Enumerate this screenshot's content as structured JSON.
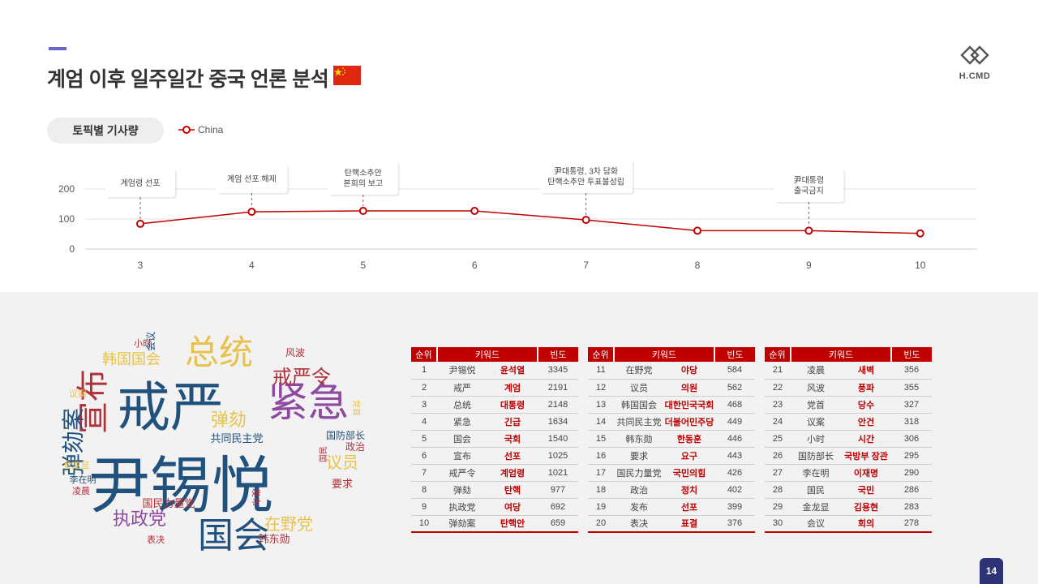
{
  "header": {
    "title": "계엄 이후 일주일간 중국 언론 분석"
  },
  "logo": {
    "text": "H.CMD"
  },
  "topic": {
    "label": "토픽별 기사량"
  },
  "colors": {
    "accent": "#6a68c9",
    "chart": "#c00000",
    "table_header": "#c00000",
    "page_badge": "#2e3376"
  },
  "chart_data": {
    "type": "line",
    "x": [
      3,
      4,
      5,
      6,
      7,
      8,
      9,
      10
    ],
    "series": [
      {
        "name": "China",
        "values": [
          84,
          124,
          127,
          127,
          97,
          61,
          61,
          52
        ]
      }
    ],
    "ylim": [
      0,
      200
    ],
    "yticks": [
      0,
      100,
      200
    ],
    "grid": true,
    "legend": "top-left",
    "annotations": [
      {
        "x": 3,
        "lines": [
          "계엄령 선포"
        ]
      },
      {
        "x": 4,
        "lines": [
          "계엄 선포 해제"
        ]
      },
      {
        "x": 5,
        "lines": [
          "탄핵소추안",
          "본회의 보고"
        ]
      },
      {
        "x": 7,
        "lines": [
          "尹대통령, 3차 담화",
          "탄핵소추안 투표불성립"
        ]
      },
      {
        "x": 9,
        "lines": [
          "尹대통령",
          "출국금지"
        ]
      }
    ]
  },
  "wordcloud": {
    "words": [
      {
        "text": "尹锡悦",
        "color": "#21527e"
      },
      {
        "text": "戒严",
        "color": "#21527e"
      },
      {
        "text": "紧急",
        "color": "#8e4aa0"
      },
      {
        "text": "总统",
        "color": "#e8c24a"
      },
      {
        "text": "宣布",
        "color": "#b03039"
      },
      {
        "text": "国会",
        "color": "#21527e"
      },
      {
        "text": "弹劾案",
        "color": "#21527e"
      },
      {
        "text": "戒严令",
        "color": "#b03039"
      },
      {
        "text": "弹劾",
        "color": "#e8c24a"
      },
      {
        "text": "执政党",
        "color": "#8e4aa0"
      },
      {
        "text": "在野党",
        "color": "#e8c24a"
      },
      {
        "text": "议员",
        "color": "#e8c24a"
      },
      {
        "text": "韩国国会",
        "color": "#e8c24a"
      },
      {
        "text": "共同民主党",
        "color": "#21527e"
      },
      {
        "text": "国民力量党",
        "color": "#b03039"
      },
      {
        "text": "韩东勋",
        "color": "#b03039"
      },
      {
        "text": "政治",
        "color": "#b03039"
      },
      {
        "text": "要求",
        "color": "#b03039"
      },
      {
        "text": "国防部长",
        "color": "#21527e"
      },
      {
        "text": "李在明",
        "color": "#21527e"
      },
      {
        "text": "凌晨",
        "color": "#b03039"
      },
      {
        "text": "风波",
        "color": "#b03039"
      },
      {
        "text": "小时",
        "color": "#b03039"
      },
      {
        "text": "会议",
        "color": "#21527e"
      },
      {
        "text": "金龙显",
        "color": "#e8c24a"
      },
      {
        "text": "表决",
        "color": "#b03039"
      },
      {
        "text": "议案",
        "color": "#e8c24a"
      },
      {
        "text": "党首",
        "color": "#e8c24a"
      },
      {
        "text": "发布",
        "color": "#b03039"
      },
      {
        "text": "国民",
        "color": "#b03039"
      }
    ]
  },
  "tables": [
    {
      "headers": [
        "순위",
        "키워드",
        "빈도"
      ],
      "rows": [
        {
          "rank": "1",
          "cn": "尹锡悦",
          "kw": "윤석열",
          "freq": "3345"
        },
        {
          "rank": "2",
          "cn": "戒严",
          "kw": "계엄",
          "freq": "2191"
        },
        {
          "rank": "3",
          "cn": "总统",
          "kw": "대통령",
          "freq": "2148"
        },
        {
          "rank": "4",
          "cn": "紧急",
          "kw": "긴급",
          "freq": "1634"
        },
        {
          "rank": "5",
          "cn": "国会",
          "kw": "국회",
          "freq": "1540"
        },
        {
          "rank": "6",
          "cn": "宣布",
          "kw": "선포",
          "freq": "1025"
        },
        {
          "rank": "7",
          "cn": "戒严令",
          "kw": "계엄령",
          "freq": "1021"
        },
        {
          "rank": "8",
          "cn": "弹劾",
          "kw": "탄핵",
          "freq": "977"
        },
        {
          "rank": "9",
          "cn": "执政党",
          "kw": "여당",
          "freq": "692"
        },
        {
          "rank": "10",
          "cn": "弹劾案",
          "kw": "탄핵안",
          "freq": "659"
        }
      ]
    },
    {
      "headers": [
        "순위",
        "키워드",
        "빈도"
      ],
      "rows": [
        {
          "rank": "11",
          "cn": "在野党",
          "kw": "야당",
          "freq": "584"
        },
        {
          "rank": "12",
          "cn": "议员",
          "kw": "의원",
          "freq": "562"
        },
        {
          "rank": "13",
          "cn": "韩国国会",
          "kw": "대한민국국회",
          "freq": "468"
        },
        {
          "rank": "14",
          "cn": "共同民主党",
          "kw": "더불어민주당",
          "freq": "449"
        },
        {
          "rank": "15",
          "cn": "韩东勋",
          "kw": "한동훈",
          "freq": "446"
        },
        {
          "rank": "16",
          "cn": "要求",
          "kw": "요구",
          "freq": "443"
        },
        {
          "rank": "17",
          "cn": "国民力量党",
          "kw": "국민의힘",
          "freq": "426"
        },
        {
          "rank": "18",
          "cn": "政治",
          "kw": "정치",
          "freq": "402"
        },
        {
          "rank": "19",
          "cn": "发布",
          "kw": "선포",
          "freq": "399"
        },
        {
          "rank": "20",
          "cn": "表决",
          "kw": "표결",
          "freq": "376"
        }
      ]
    },
    {
      "headers": [
        "순위",
        "키워드",
        "빈도"
      ],
      "rows": [
        {
          "rank": "21",
          "cn": "凌晨",
          "kw": "새벽",
          "freq": "356"
        },
        {
          "rank": "22",
          "cn": "风波",
          "kw": "풍파",
          "freq": "355"
        },
        {
          "rank": "23",
          "cn": "党首",
          "kw": "당수",
          "freq": "327"
        },
        {
          "rank": "24",
          "cn": "议案",
          "kw": "안건",
          "freq": "318"
        },
        {
          "rank": "25",
          "cn": "小时",
          "kw": "시간",
          "freq": "306"
        },
        {
          "rank": "26",
          "cn": "国防部长",
          "kw": "국방부 장관",
          "freq": "295"
        },
        {
          "rank": "27",
          "cn": "李在明",
          "kw": "이재명",
          "freq": "290"
        },
        {
          "rank": "28",
          "cn": "国民",
          "kw": "국민",
          "freq": "286"
        },
        {
          "rank": "29",
          "cn": "金龙显",
          "kw": "김용현",
          "freq": "283"
        },
        {
          "rank": "30",
          "cn": "会议",
          "kw": "회의",
          "freq": "278"
        }
      ]
    }
  ],
  "page": {
    "number": "14"
  }
}
